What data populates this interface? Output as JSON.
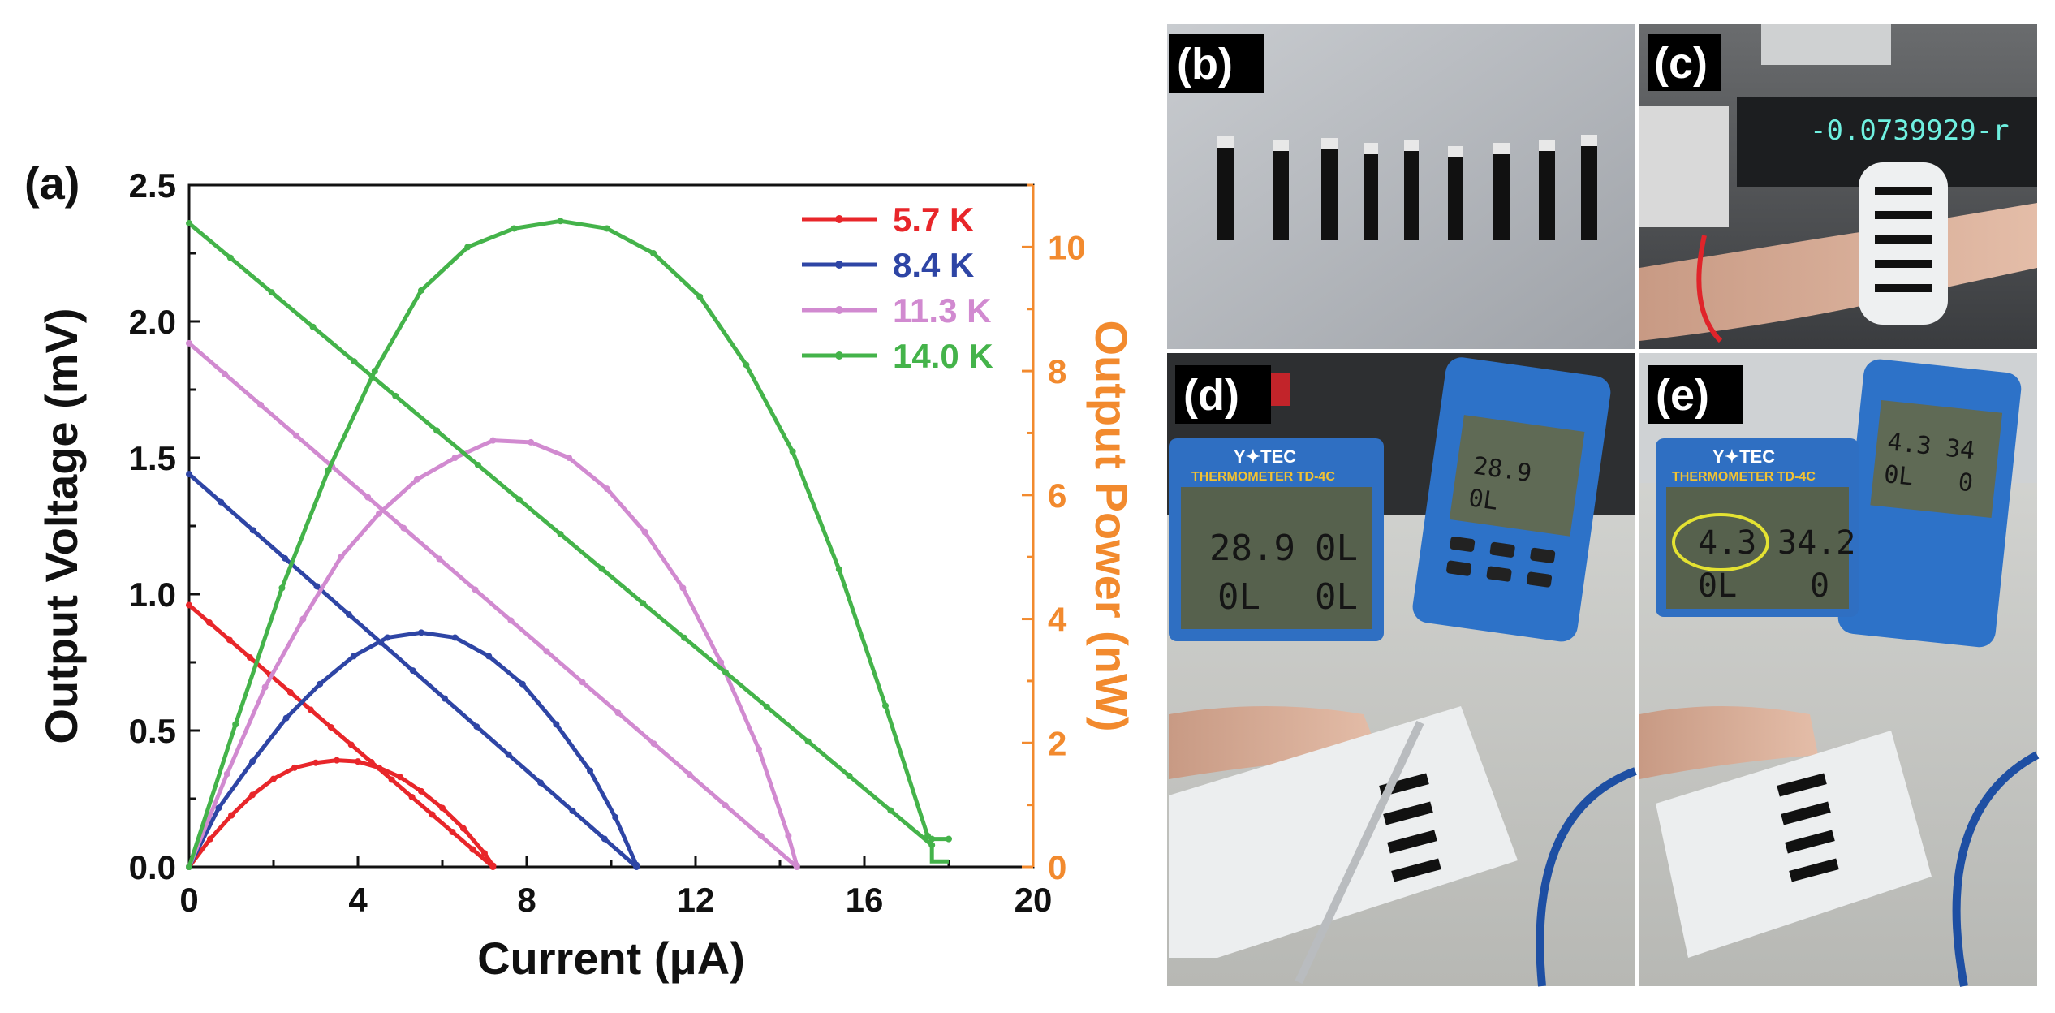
{
  "panel_labels": {
    "a": "(a)",
    "b": "(b)",
    "c": "(c)",
    "d": "(d)",
    "e": "(e)"
  },
  "photo_text": {
    "meter_brand": "Y✦TEC",
    "meter_model": "THERMOMETER TD-4C",
    "d_inset_t1": "28.9",
    "d_inset_t2": "0L",
    "d_inset_t3": "0L",
    "d_inset_t4": "0L",
    "d_handheld_t1": "28.9",
    "d_handheld_t2": "0L",
    "e_inset_t1": "4.3",
    "e_inset_t2": "34.2",
    "e_inset_t3": "0L",
    "e_inset_t4": "0",
    "e_handheld_t1": "4.3",
    "e_handheld_t2": "34",
    "e_handheld_t3": "0L",
    "e_handheld_t4": "0",
    "c_display": "-0.0739929-r"
  },
  "colors": {
    "red": "#e8262a",
    "blue": "#2e45a5",
    "pink": "#d18ad0",
    "green": "#44b34a",
    "orange": "#f28a2e"
  },
  "chart_data": {
    "type": "line",
    "title": "",
    "xlabel": "Current (μA)",
    "ylabel": "Output Voltage (mV)",
    "y2label": "Output Power (nW)",
    "xlim": [
      0,
      20
    ],
    "ylim": [
      0,
      2.5
    ],
    "y2lim": [
      0,
      11.0
    ],
    "xticks": [
      "0",
      "4",
      "8",
      "12",
      "16",
      "20"
    ],
    "yticks": [
      "0.0",
      "0.5",
      "1.0",
      "1.5",
      "2.0",
      "2.5"
    ],
    "y2ticks": [
      "0",
      "2",
      "4",
      "6",
      "8",
      "10"
    ],
    "legend_position": "top-right",
    "series": [
      {
        "name": "5.7 K",
        "color": "#e8262a",
        "voltage": [
          [
            0,
            0.96
          ],
          [
            7.2,
            0.0
          ]
        ],
        "power": [
          [
            0,
            0
          ],
          [
            0.5,
            0.45
          ],
          [
            1.0,
            0.83
          ],
          [
            1.5,
            1.16
          ],
          [
            2.0,
            1.42
          ],
          [
            2.5,
            1.6
          ],
          [
            3.0,
            1.68
          ],
          [
            3.5,
            1.72
          ],
          [
            4.0,
            1.7
          ],
          [
            4.5,
            1.6
          ],
          [
            5.0,
            1.45
          ],
          [
            5.5,
            1.22
          ],
          [
            6.0,
            0.95
          ],
          [
            6.5,
            0.62
          ],
          [
            7.0,
            0.22
          ],
          [
            7.2,
            0.02
          ]
        ]
      },
      {
        "name": "8.4 K",
        "color": "#2e45a5",
        "voltage": [
          [
            0,
            1.44
          ],
          [
            10.6,
            0.0
          ]
        ],
        "power": [
          [
            0,
            0
          ],
          [
            0.7,
            0.95
          ],
          [
            1.5,
            1.7
          ],
          [
            2.3,
            2.4
          ],
          [
            3.1,
            2.95
          ],
          [
            3.9,
            3.4
          ],
          [
            4.7,
            3.7
          ],
          [
            5.5,
            3.78
          ],
          [
            6.3,
            3.7
          ],
          [
            7.1,
            3.4
          ],
          [
            7.9,
            2.95
          ],
          [
            8.7,
            2.3
          ],
          [
            9.5,
            1.55
          ],
          [
            10.1,
            0.8
          ],
          [
            10.6,
            0.03
          ]
        ]
      },
      {
        "name": "11.3 K",
        "color": "#d18ad0",
        "voltage": [
          [
            0,
            1.92
          ],
          [
            14.4,
            0.0
          ]
        ],
        "power": [
          [
            0,
            0
          ],
          [
            0.9,
            1.5
          ],
          [
            1.8,
            2.9
          ],
          [
            2.7,
            4.0
          ],
          [
            3.6,
            5.0
          ],
          [
            4.5,
            5.7
          ],
          [
            5.4,
            6.25
          ],
          [
            6.3,
            6.6
          ],
          [
            7.2,
            6.88
          ],
          [
            8.1,
            6.85
          ],
          [
            9.0,
            6.6
          ],
          [
            9.9,
            6.1
          ],
          [
            10.8,
            5.4
          ],
          [
            11.7,
            4.5
          ],
          [
            12.6,
            3.3
          ],
          [
            13.5,
            1.9
          ],
          [
            14.2,
            0.5
          ],
          [
            14.4,
            0.02
          ]
        ]
      },
      {
        "name": "14.0 K",
        "color": "#44b34a",
        "voltage": [
          [
            0,
            2.36
          ],
          [
            17.6,
            0.08
          ],
          [
            17.6,
            0.02
          ],
          [
            18.0,
            0.02
          ]
        ],
        "power": [
          [
            0,
            0
          ],
          [
            1.1,
            2.3
          ],
          [
            2.2,
            4.5
          ],
          [
            3.3,
            6.4
          ],
          [
            4.4,
            8.0
          ],
          [
            5.5,
            9.3
          ],
          [
            6.6,
            10.0
          ],
          [
            7.7,
            10.3
          ],
          [
            8.8,
            10.42
          ],
          [
            9.9,
            10.3
          ],
          [
            11.0,
            9.9
          ],
          [
            12.1,
            9.2
          ],
          [
            13.2,
            8.1
          ],
          [
            14.3,
            6.7
          ],
          [
            15.4,
            4.8
          ],
          [
            16.5,
            2.6
          ],
          [
            17.5,
            0.5
          ],
          [
            17.6,
            0.45
          ],
          [
            18.0,
            0.45
          ]
        ]
      }
    ]
  }
}
